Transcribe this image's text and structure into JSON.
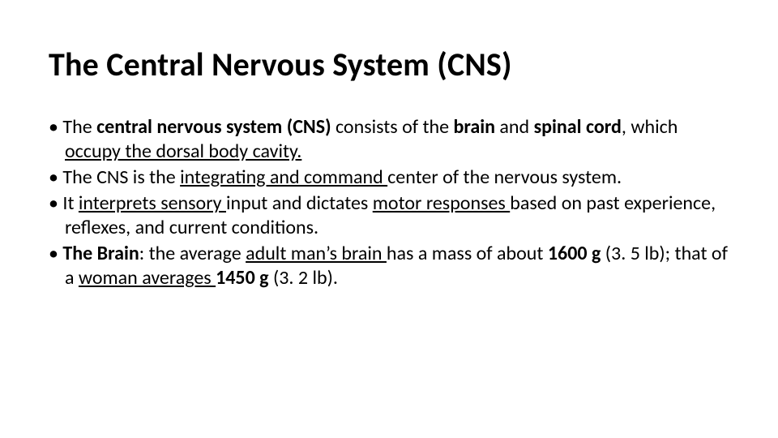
{
  "slide": {
    "title": "The Central Nervous System (CNS)",
    "title_fontsize": 40,
    "title_fontweight": 700,
    "title_color": "#000000",
    "body_fontsize": 24,
    "body_color": "#000000",
    "background_color": "#ffffff",
    "bullets": [
      {
        "parts": [
          {
            "text": "The ",
            "bold": false,
            "underline": false
          },
          {
            "text": "central nervous system (CNS) ",
            "bold": true,
            "underline": false
          },
          {
            "text": "consists of the ",
            "bold": false,
            "underline": false
          },
          {
            "text": "brain ",
            "bold": true,
            "underline": false
          },
          {
            "text": "and ",
            "bold": false,
            "underline": false
          },
          {
            "text": "spinal cord",
            "bold": true,
            "underline": false
          },
          {
            "text": ", which ",
            "bold": false,
            "underline": false
          },
          {
            "text": "occupy the dorsal body cavity.",
            "bold": false,
            "underline": true
          }
        ]
      },
      {
        "parts": [
          {
            "text": "The CNS is the ",
            "bold": false,
            "underline": false
          },
          {
            "text": "integrating and command ",
            "bold": false,
            "underline": true
          },
          {
            "text": "center of the nervous system.",
            "bold": false,
            "underline": false
          }
        ]
      },
      {
        "parts": [
          {
            "text": "It ",
            "bold": false,
            "underline": false
          },
          {
            "text": "interprets sensory ",
            "bold": false,
            "underline": true
          },
          {
            "text": "input and dictates ",
            "bold": false,
            "underline": false
          },
          {
            "text": "motor responses ",
            "bold": false,
            "underline": true
          },
          {
            "text": "based on past experience, reflexes, and current conditions.",
            "bold": false,
            "underline": false
          }
        ]
      },
      {
        "parts": [
          {
            "text": "The Brain",
            "bold": true,
            "underline": false
          },
          {
            "text": ": the average ",
            "bold": false,
            "underline": false
          },
          {
            "text": "adult man’s brain ",
            "bold": false,
            "underline": true
          },
          {
            "text": "has a mass of about ",
            "bold": false,
            "underline": false
          },
          {
            "text": "1600 g ",
            "bold": true,
            "underline": false
          },
          {
            "text": "(3. 5 lb); that of a ",
            "bold": false,
            "underline": false
          },
          {
            "text": "woman averages ",
            "bold": false,
            "underline": true
          },
          {
            "text": "1450 g ",
            "bold": true,
            "underline": false
          },
          {
            "text": "(3. 2 lb).",
            "bold": false,
            "underline": false
          }
        ]
      }
    ]
  }
}
